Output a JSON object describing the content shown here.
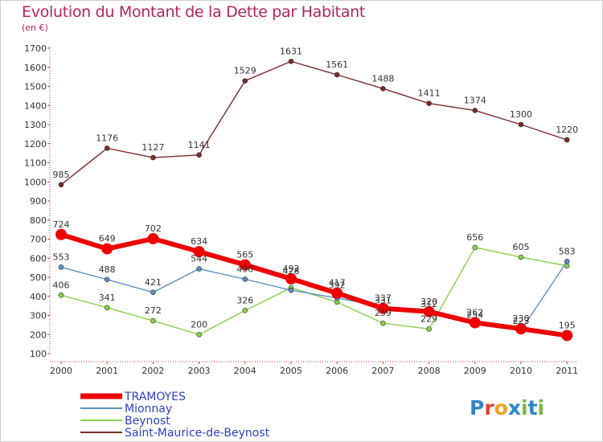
{
  "title": "Evolution du Montant de la Dette par Habitant",
  "subtitle": "(en €)",
  "chart_data": {
    "type": "line",
    "title": "Evolution du Montant de la Dette par Habitant",
    "ylabel": "(en €)",
    "xlabel": "",
    "ylim": [
      100,
      1700
    ],
    "yticks": [
      100,
      200,
      300,
      400,
      500,
      600,
      700,
      800,
      900,
      1000,
      1100,
      1200,
      1300,
      1400,
      1500,
      1600,
      1700
    ],
    "x": [
      "2000",
      "2001",
      "2002",
      "2003",
      "2004",
      "2005",
      "2006",
      "2007",
      "2008",
      "2009",
      "2010",
      "2011"
    ],
    "grid": false,
    "legend_position": "bottom-left",
    "series": [
      {
        "name": "Saint-Maurice-de-Beynost",
        "color": "#7a2a2a",
        "values": [
          985,
          1176,
          1127,
          1141,
          1529,
          1631,
          1561,
          1488,
          1411,
          1374,
          1300,
          1220
        ],
        "labels": [
          "985",
          "1176",
          "1127",
          "1141",
          "1529",
          "1631",
          "1561",
          "1488",
          "1411",
          "1374",
          "1300",
          "1220"
        ]
      },
      {
        "name": "Beynost",
        "color": "#88d04a",
        "values": [
          406,
          341,
          272,
          200,
          326,
          445,
          370,
          259,
          229,
          656,
          605,
          560
        ],
        "labels": [
          "406",
          "341",
          "272",
          "200",
          "326",
          "",
          "",
          "259",
          "229",
          "656",
          "605",
          ""
        ]
      },
      {
        "name": "Mionnay",
        "color": "#5b8fc7",
        "values": [
          553,
          488,
          421,
          544,
          490,
          432,
          391,
          347,
          312,
          264,
          222,
          583
        ],
        "labels": [
          "553",
          "488",
          "421",
          "544",
          "490",
          "",
          "",
          "",
          "",
          "",
          "",
          "583"
        ]
      },
      {
        "name": "TRAMOYES",
        "color": "#ee0000",
        "values": [
          724,
          649,
          702,
          634,
          565,
          492,
          417,
          337,
          320,
          262,
          230,
          195
        ],
        "labels": [
          "724",
          "649",
          "702",
          "634",
          "565",
          "492",
          "417",
          "337",
          "320",
          "262",
          "230",
          "195"
        ],
        "overlap_labels": [
          "",
          "",
          "",
          "",
          "",
          "428",
          "392",
          "331",
          "312",
          "254",
          "223",
          ""
        ]
      }
    ],
    "legend": [
      "TRAMOYES",
      "Mionnay",
      "Beynost",
      "Saint-Maurice-de-Beynost"
    ]
  },
  "logo": {
    "text": "Proxiti"
  }
}
